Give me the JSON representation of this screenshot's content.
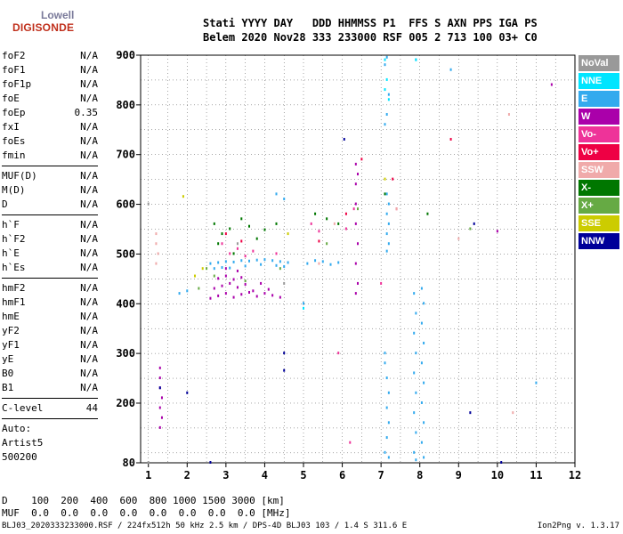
{
  "logo": {
    "line1": "Lowell",
    "line2": "DIGISONDE"
  },
  "header": {
    "line1": "Stati YYYY DAY   DDD HHMMSS P1  FFS S AXN PPS IGA PS",
    "line2": "Belem 2020 Nov28 333 233000 RSF 005 2 713 100 03+ C0"
  },
  "params": [
    {
      "name": "foF2",
      "value": "N/A"
    },
    {
      "name": "foF1",
      "value": "N/A"
    },
    {
      "name": "foF1p",
      "value": "N/A"
    },
    {
      "name": "foE",
      "value": "N/A"
    },
    {
      "name": "foEp",
      "value": "0.35"
    },
    {
      "name": "fxI",
      "value": "N/A"
    },
    {
      "name": "foEs",
      "value": "N/A"
    },
    {
      "name": "fmin",
      "value": "N/A"
    },
    {
      "sep": true
    },
    {
      "name": "MUF(D)",
      "value": "N/A"
    },
    {
      "name": "M(D)",
      "value": "N/A"
    },
    {
      "name": "D",
      "value": "N/A"
    },
    {
      "sep": true
    },
    {
      "name": "h`F",
      "value": "N/A"
    },
    {
      "name": "h`F2",
      "value": "N/A"
    },
    {
      "name": "h`E",
      "value": "N/A"
    },
    {
      "name": "h`Es",
      "value": "N/A"
    },
    {
      "sep": true
    },
    {
      "name": "hmF2",
      "value": "N/A"
    },
    {
      "name": "hmF1",
      "value": "N/A"
    },
    {
      "name": "hmE",
      "value": "N/A"
    },
    {
      "name": "yF2",
      "value": "N/A"
    },
    {
      "name": "yF1",
      "value": "N/A"
    },
    {
      "name": "yE",
      "value": "N/A"
    },
    {
      "name": "B0",
      "value": "N/A"
    },
    {
      "name": "B1",
      "value": "N/A"
    },
    {
      "sep": true
    },
    {
      "name": "C-level",
      "value": "44"
    },
    {
      "sep": true
    },
    {
      "name": "Auto:",
      "value": ""
    },
    {
      "name": "Artist5",
      "value": ""
    },
    {
      "name": "500200",
      "value": ""
    }
  ],
  "legend": [
    {
      "label": "NoVal",
      "color": "#999999"
    },
    {
      "label": "NNE",
      "color": "#00e5ff"
    },
    {
      "label": "E",
      "color": "#33aaee"
    },
    {
      "label": "W",
      "color": "#aa00aa"
    },
    {
      "label": "Vo-",
      "color": "#ee3399"
    },
    {
      "label": "Vo+",
      "color": "#ee0044"
    },
    {
      "label": "SSW",
      "color": "#f0aaaa"
    },
    {
      "label": "X-",
      "color": "#007700"
    },
    {
      "label": "X+",
      "color": "#66aa44"
    },
    {
      "label": "SSE",
      "color": "#cccc00"
    },
    {
      "label": "NNW",
      "color": "#000099"
    }
  ],
  "bottom": {
    "line1": "D    100  200  400  600  800 1000 1500 3000 [km]",
    "line2": "MUF  0.0  0.0  0.0  0.0  0.0  0.0  0.0  0.0 [MHz]"
  },
  "footer": "BLJ03_2020333233000.RSF / 224fx512h 50 kHz 2.5 km / DPS-4D BLJ03 103 / 1.4 S 311.6 E",
  "version": "Ion2Png v. 1.3.17",
  "chart_data": {
    "type": "scatter",
    "title": "",
    "xlabel": "",
    "ylabel": "",
    "xlim": [
      0.8,
      12
    ],
    "ylim": [
      80,
      900
    ],
    "x_ticks": [
      1,
      2,
      3,
      4,
      5,
      6,
      7,
      8,
      9,
      10,
      11,
      12
    ],
    "y_ticks": [
      80,
      200,
      300,
      400,
      500,
      600,
      700,
      800,
      900
    ],
    "grid": true,
    "series": [
      {
        "name": "E",
        "color": "#33aaee",
        "points": [
          [
            2.6,
            480
          ],
          [
            2.8,
            482
          ],
          [
            3.0,
            484
          ],
          [
            3.2,
            483
          ],
          [
            3.4,
            486
          ],
          [
            3.6,
            485
          ],
          [
            3.8,
            487
          ],
          [
            4.0,
            488
          ],
          [
            4.2,
            486
          ],
          [
            4.4,
            484
          ],
          [
            4.6,
            482
          ],
          [
            2.7,
            470
          ],
          [
            2.9,
            472
          ],
          [
            3.1,
            471
          ],
          [
            3.5,
            475
          ],
          [
            3.9,
            478
          ],
          [
            4.3,
            476
          ],
          [
            4.5,
            474
          ],
          [
            5.1,
            480
          ],
          [
            5.3,
            486
          ],
          [
            5.5,
            484
          ],
          [
            5.7,
            478
          ],
          [
            5.9,
            482
          ],
          [
            7.1,
            300
          ],
          [
            7.1,
            280
          ],
          [
            7.15,
            250
          ],
          [
            7.2,
            220
          ],
          [
            7.15,
            190
          ],
          [
            7.2,
            160
          ],
          [
            7.15,
            130
          ],
          [
            7.1,
            100
          ],
          [
            7.2,
            90
          ],
          [
            7.1,
            760
          ],
          [
            7.15,
            780
          ],
          [
            7.2,
            820
          ],
          [
            7.1,
            880
          ],
          [
            7.15,
            895
          ],
          [
            7.85,
            420
          ],
          [
            7.9,
            380
          ],
          [
            7.85,
            340
          ],
          [
            7.9,
            300
          ],
          [
            7.85,
            260
          ],
          [
            7.9,
            220
          ],
          [
            7.85,
            180
          ],
          [
            7.9,
            140
          ],
          [
            7.85,
            100
          ],
          [
            7.9,
            85
          ],
          [
            8.05,
            430
          ],
          [
            8.1,
            400
          ],
          [
            8.05,
            360
          ],
          [
            8.1,
            320
          ],
          [
            8.05,
            280
          ],
          [
            8.1,
            240
          ],
          [
            8.05,
            200
          ],
          [
            8.1,
            160
          ],
          [
            8.05,
            120
          ],
          [
            8.1,
            90
          ],
          [
            7.15,
            620
          ],
          [
            7.2,
            600
          ],
          [
            7.15,
            580
          ],
          [
            7.2,
            560
          ],
          [
            7.15,
            540
          ],
          [
            7.2,
            520
          ],
          [
            7.15,
            505
          ],
          [
            7.9,
            890
          ],
          [
            8.8,
            870
          ],
          [
            11.0,
            240
          ],
          [
            4.3,
            620
          ],
          [
            4.5,
            610
          ],
          [
            1.8,
            420
          ],
          [
            2.0,
            425
          ],
          [
            5.0,
            400
          ]
        ]
      },
      {
        "name": "W",
        "color": "#aa00aa",
        "points": [
          [
            2.6,
            410
          ],
          [
            2.8,
            415
          ],
          [
            3.0,
            420
          ],
          [
            3.2,
            412
          ],
          [
            3.4,
            418
          ],
          [
            3.6,
            422
          ],
          [
            3.8,
            414
          ],
          [
            4.0,
            420
          ],
          [
            4.2,
            416
          ],
          [
            4.4,
            412
          ],
          [
            2.7,
            430
          ],
          [
            2.9,
            435
          ],
          [
            3.1,
            440
          ],
          [
            3.3,
            432
          ],
          [
            3.5,
            438
          ],
          [
            3.7,
            425
          ],
          [
            3.9,
            440
          ],
          [
            4.1,
            428
          ],
          [
            2.8,
            450
          ],
          [
            3.0,
            455
          ],
          [
            3.2,
            448
          ],
          [
            3.4,
            452
          ],
          [
            3.0,
            470
          ],
          [
            3.3,
            465
          ],
          [
            6.35,
            640
          ],
          [
            6.35,
            600
          ],
          [
            6.35,
            560
          ],
          [
            6.4,
            520
          ],
          [
            6.35,
            480
          ],
          [
            6.4,
            440
          ],
          [
            6.35,
            420
          ],
          [
            6.4,
            660
          ],
          [
            6.35,
            680
          ],
          [
            1.3,
            270
          ],
          [
            1.3,
            250
          ],
          [
            1.3,
            230
          ],
          [
            1.35,
            210
          ],
          [
            1.3,
            190
          ],
          [
            1.35,
            170
          ],
          [
            1.3,
            150
          ],
          [
            10.0,
            545
          ],
          [
            11.4,
            840
          ]
        ]
      },
      {
        "name": "X-",
        "color": "#007700",
        "points": [
          [
            2.7,
            560
          ],
          [
            2.9,
            540
          ],
          [
            3.1,
            550
          ],
          [
            3.4,
            570
          ],
          [
            3.6,
            555
          ],
          [
            3.8,
            530
          ],
          [
            4.0,
            548
          ],
          [
            4.3,
            560
          ],
          [
            5.3,
            580
          ],
          [
            5.6,
            570
          ],
          [
            5.9,
            560
          ],
          [
            7.1,
            620
          ],
          [
            8.2,
            580
          ],
          [
            2.8,
            520
          ],
          [
            3.2,
            500
          ]
        ]
      },
      {
        "name": "Vo-",
        "color": "#ee3399",
        "points": [
          [
            2.9,
            520
          ],
          [
            3.1,
            500
          ],
          [
            3.3,
            510
          ],
          [
            3.5,
            495
          ],
          [
            3.7,
            505
          ],
          [
            4.3,
            500
          ],
          [
            5.2,
            560
          ],
          [
            5.4,
            545
          ],
          [
            6.1,
            550
          ],
          [
            6.3,
            590
          ],
          [
            7.0,
            440
          ],
          [
            5.9,
            300
          ],
          [
            6.2,
            120
          ]
        ]
      },
      {
        "name": "Vo+",
        "color": "#ee0044",
        "points": [
          [
            3.0,
            540
          ],
          [
            3.4,
            525
          ],
          [
            5.4,
            525
          ],
          [
            6.1,
            580
          ],
          [
            8.8,
            730
          ],
          [
            6.5,
            690
          ],
          [
            7.3,
            650
          ],
          [
            7.4,
            590
          ]
        ]
      },
      {
        "name": "SSW",
        "color": "#f0aaaa",
        "points": [
          [
            1.2,
            540
          ],
          [
            1.2,
            520
          ],
          [
            1.25,
            500
          ],
          [
            1.2,
            480
          ],
          [
            5.4,
            480
          ],
          [
            5.8,
            560
          ],
          [
            7.4,
            590
          ],
          [
            9.0,
            530
          ],
          [
            10.3,
            780
          ],
          [
            10.4,
            180
          ]
        ]
      },
      {
        "name": "NNE",
        "color": "#00e5ff",
        "points": [
          [
            7.1,
            890
          ],
          [
            7.15,
            850
          ],
          [
            7.1,
            830
          ],
          [
            7.2,
            810
          ],
          [
            7.9,
            890
          ],
          [
            5.0,
            390
          ]
        ]
      },
      {
        "name": "NNW",
        "color": "#000099",
        "points": [
          [
            2.0,
            220
          ],
          [
            1.3,
            230
          ],
          [
            4.5,
            300
          ],
          [
            4.5,
            265
          ],
          [
            6.05,
            730
          ],
          [
            9.3,
            180
          ],
          [
            9.4,
            560
          ],
          [
            10.1,
            80
          ],
          [
            2.6,
            80
          ]
        ]
      },
      {
        "name": "X+",
        "color": "#66aa44",
        "points": [
          [
            2.5,
            470
          ],
          [
            2.7,
            455
          ],
          [
            3.5,
            445
          ],
          [
            4.4,
            470
          ],
          [
            5.6,
            520
          ],
          [
            6.4,
            590
          ],
          [
            9.3,
            550
          ],
          [
            2.3,
            430
          ]
        ]
      },
      {
        "name": "SSE",
        "color": "#cccc00",
        "points": [
          [
            1.9,
            615
          ],
          [
            2.4,
            470
          ],
          [
            2.2,
            455
          ],
          [
            4.6,
            540
          ],
          [
            7.1,
            650
          ]
        ]
      },
      {
        "name": "NoVal",
        "color": "#999999",
        "points": [
          [
            1.0,
            600
          ],
          [
            1.0,
            80
          ],
          [
            3.3,
            520
          ],
          [
            4.5,
            440
          ]
        ]
      }
    ]
  }
}
